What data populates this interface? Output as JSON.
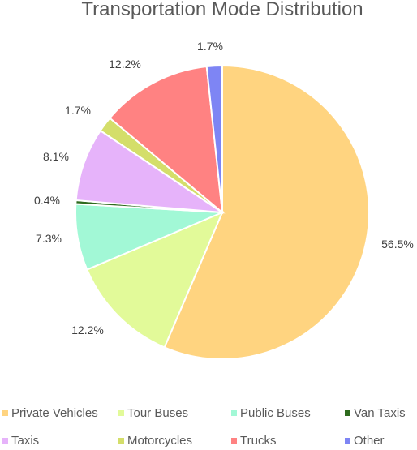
{
  "chart_data": {
    "type": "pie",
    "title": "Transportation Mode Distribution",
    "legend_position": "bottom",
    "slices": [
      {
        "name": "Private Vehicles",
        "value": 56.5,
        "label": "56.5%",
        "color": "#FFD480"
      },
      {
        "name": "Tour Buses",
        "value": 12.2,
        "label": "12.2%",
        "color": "#E2FA99"
      },
      {
        "name": "Public Buses",
        "value": 7.3,
        "label": "7.3%",
        "color": "#A2F8D6"
      },
      {
        "name": "Van Taxis",
        "value": 0.4,
        "label": "0.4%",
        "color": "#2E6B1E"
      },
      {
        "name": "Taxis",
        "value": 8.1,
        "label": "8.1%",
        "color": "#E6B3FA"
      },
      {
        "name": "Motorcycles",
        "value": 1.7,
        "label": "1.7%",
        "color": "#D4DE6A"
      },
      {
        "name": "Trucks",
        "value": 12.2,
        "label": "12.2%",
        "color": "#FF8282"
      },
      {
        "name": "Other",
        "value": 1.7,
        "label": "1.7%",
        "color": "#7E85F4"
      }
    ]
  }
}
